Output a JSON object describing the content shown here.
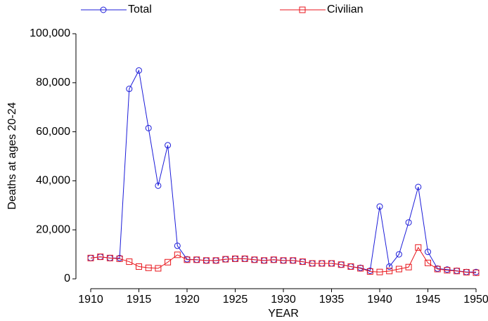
{
  "chart_data": {
    "type": "line",
    "x": [
      1910,
      1911,
      1912,
      1913,
      1914,
      1915,
      1916,
      1917,
      1918,
      1919,
      1920,
      1921,
      1922,
      1923,
      1924,
      1925,
      1926,
      1927,
      1928,
      1929,
      1930,
      1931,
      1932,
      1933,
      1934,
      1935,
      1936,
      1937,
      1938,
      1939,
      1940,
      1941,
      1942,
      1943,
      1944,
      1945,
      1946,
      1947,
      1948,
      1949,
      1950
    ],
    "series": [
      {
        "name": "Total",
        "color": "#1c1cd9",
        "marker": "circle",
        "values": [
          8500,
          9000,
          8500,
          8500,
          77500,
          85000,
          61500,
          38000,
          54500,
          13500,
          8000,
          7800,
          7500,
          7500,
          8000,
          8200,
          8200,
          7800,
          7500,
          7800,
          7500,
          7500,
          7000,
          6300,
          6300,
          6300,
          5800,
          5000,
          4500,
          3300,
          29500,
          5000,
          10000,
          23000,
          37500,
          11000,
          4200,
          3800,
          3300,
          2800,
          2800
        ]
      },
      {
        "name": "Civilian",
        "color": "#e8161c",
        "marker": "square",
        "values": [
          8500,
          9000,
          8500,
          8200,
          7000,
          5000,
          4500,
          4300,
          6800,
          9800,
          7800,
          7800,
          7500,
          7500,
          8000,
          8200,
          8200,
          7800,
          7500,
          7800,
          7500,
          7500,
          7000,
          6300,
          6300,
          6300,
          5800,
          5000,
          4300,
          3000,
          2800,
          3200,
          4000,
          4800,
          12800,
          6500,
          4000,
          3500,
          3200,
          2700,
          2500
        ]
      }
    ],
    "x_label": "YEAR",
    "y_label": "Deaths at ages 20-24",
    "xlim": [
      1910,
      1950
    ],
    "xticks": [
      1910,
      1915,
      1920,
      1925,
      1930,
      1935,
      1940,
      1945,
      1950
    ],
    "ylim": [
      0,
      100000
    ],
    "yticks": [
      0,
      {
        "value": 20000,
        "label": "20,000"
      },
      {
        "value": 40000,
        "label": "40,000"
      },
      {
        "value": 60000,
        "label": "60,000"
      },
      {
        "value": 80000,
        "label": "80,000"
      },
      {
        "value": 100000,
        "label": "100,000"
      }
    ],
    "grid": false,
    "legend": "top"
  }
}
